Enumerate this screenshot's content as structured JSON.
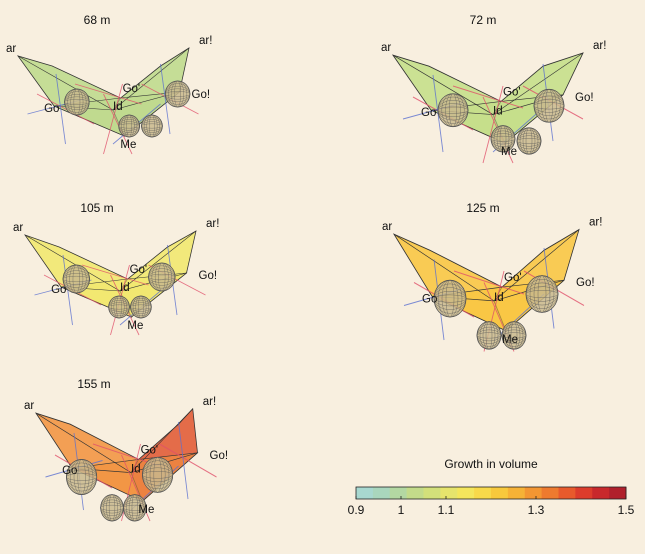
{
  "panels": [
    {
      "title": "68 m",
      "color": "#bcd98a",
      "landmarks": {
        "ar": "ar",
        "ar_prime": "ar!",
        "go": "Go",
        "go_prime": "Go'",
        "go_opp": "Go!",
        "id": "Id",
        "me": "Me"
      }
    },
    {
      "title": "72 m",
      "color": "#c3de86",
      "landmarks": {
        "ar": "ar",
        "ar_prime": "ar!",
        "go": "Go",
        "go_prime": "Go'",
        "go_opp": "Go!",
        "id": "Id",
        "me": "Me"
      }
    },
    {
      "title": "105 m",
      "color": "#f1e86a",
      "landmarks": {
        "ar": "ar",
        "ar_prime": "ar!",
        "go": "Go",
        "go_prime": "Go'",
        "go_opp": "Go!",
        "id": "Id",
        "me": "Me"
      }
    },
    {
      "title": "125 m",
      "color": "#f9c43c",
      "landmarks": {
        "ar": "ar",
        "ar_prime": "ar!",
        "go": "Go",
        "go_prime": "Go'",
        "go_opp": "Go!",
        "id": "Id",
        "me": "Me"
      }
    },
    {
      "title": "155 m",
      "color": "#f2913c",
      "color_right": "#e0552f",
      "landmarks": {
        "ar": "ar",
        "ar_prime": "ar!",
        "go": "Go",
        "go_prime": "Go'",
        "go_opp": "Go!",
        "id": "Id",
        "me": "Me"
      }
    }
  ],
  "colorbar": {
    "title": "Growth in volume",
    "range": [
      0.9,
      1.5
    ],
    "ticks": [
      0.9,
      1,
      1.1,
      1.3,
      1.5
    ],
    "tick_labels": [
      "0.9",
      "1",
      "1.1",
      "1.3",
      "1.5"
    ],
    "colors": [
      "#a8d8d0",
      "#a9d6bd",
      "#b3d8a2",
      "#c3db8a",
      "#d3e07a",
      "#e6e46c",
      "#f4e65c",
      "#f8d94a",
      "#f8c93c",
      "#f6b236",
      "#f39632",
      "#ee7a2e",
      "#e85a2c",
      "#dc3c2c",
      "#c8282c",
      "#b0202c"
    ]
  },
  "colors": {
    "background": "#f8efdf",
    "sphere": "#c9b98d",
    "line_red": "#e0506a",
    "line_blue": "#5a6fd0",
    "outline": "#333333"
  }
}
